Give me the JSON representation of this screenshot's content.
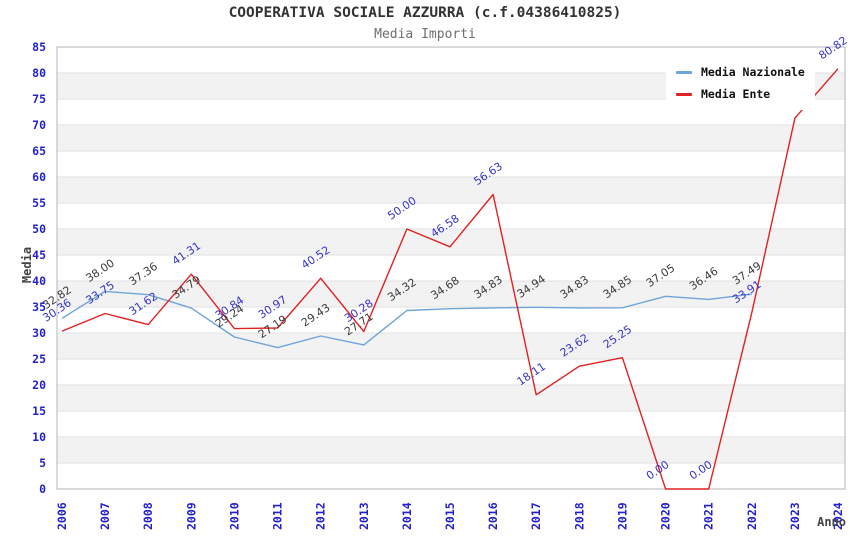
{
  "chart_data": {
    "type": "line",
    "title": "COOPERATIVA SOCIALE AZZURRA (c.f.04386410825)",
    "subtitle": "Media Importi",
    "xlabel": "Anno",
    "ylabel": "Media",
    "ylim": [
      0,
      85
    ],
    "ytick_step": 5,
    "grid": "horizontal-bands",
    "legend_position": "top-right",
    "x": [
      2006,
      2007,
      2008,
      2009,
      2010,
      2011,
      2012,
      2013,
      2014,
      2015,
      2016,
      2017,
      2018,
      2019,
      2020,
      2021,
      2022,
      2023,
      2024
    ],
    "series": [
      {
        "name": "Media Nazionale",
        "color": "#6fa3db",
        "label_color": "#3c3c3c",
        "values": [
          32.82,
          38.0,
          37.36,
          34.79,
          29.24,
          27.19,
          29.43,
          27.71,
          34.32,
          34.68,
          34.83,
          34.94,
          34.83,
          34.85,
          37.05,
          36.46,
          37.49,
          null,
          null
        ]
      },
      {
        "name": "Media Ente",
        "color": "#e02222",
        "label_color": "#3434c8",
        "values": [
          30.36,
          33.75,
          31.62,
          41.31,
          30.84,
          30.97,
          40.52,
          30.28,
          50.0,
          46.58,
          56.63,
          18.11,
          23.62,
          25.25,
          0.0,
          0.0,
          33.91,
          71.31,
          80.82
        ]
      }
    ]
  },
  "colors": {
    "tick_label": "#2222cc",
    "band_gray": "#f2f2f2",
    "gridline": "#e2e2e2",
    "plot_border": "#b5b5b5",
    "title": "#333333",
    "subtitle": "#6e6e6e",
    "axis_title": "#444444"
  }
}
